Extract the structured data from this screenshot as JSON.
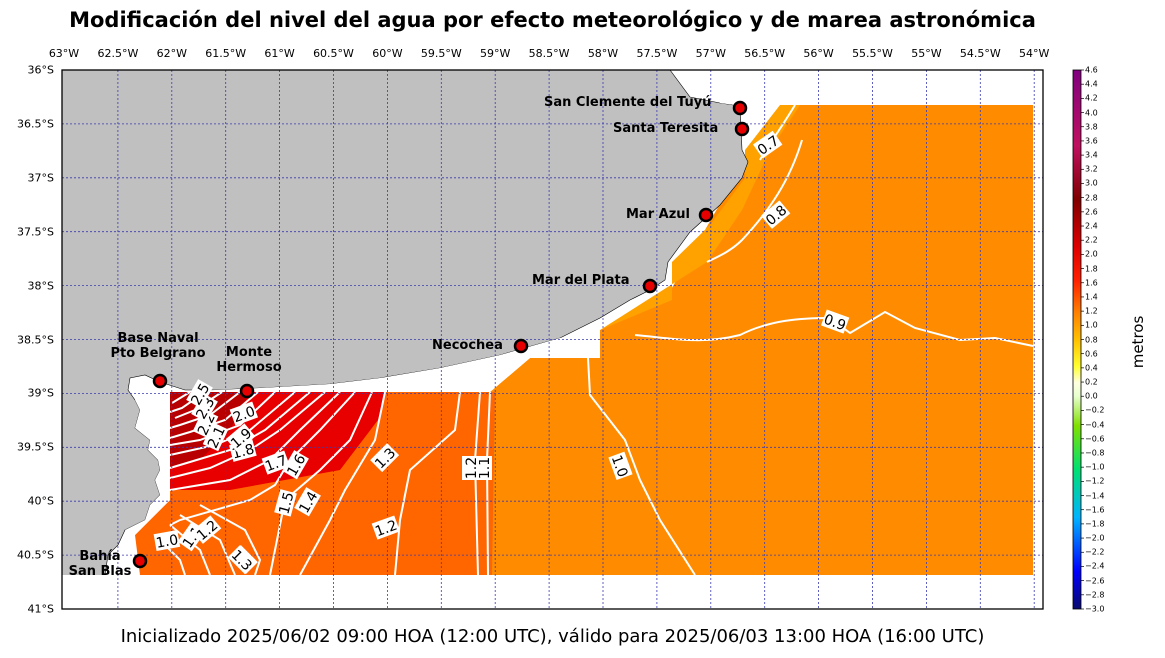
{
  "title": "Modificación del nivel del agua por efecto meteorológico y de marea astronómica",
  "footer": "Inicializado 2025/06/02 09:00 HOA (12:00 UTC), válido para 2025/06/03 13:00 HOA (16:00 UTC)",
  "map": {
    "lon_ticks": [
      "63°W",
      "62.5°W",
      "62°W",
      "61.5°W",
      "61°W",
      "60.5°W",
      "60°W",
      "59.5°W",
      "59°W",
      "58.5°W",
      "58°W",
      "57.5°W",
      "57°W",
      "56.5°W",
      "56°W",
      "55.5°W",
      "55°W",
      "54.5°W",
      "54°W"
    ],
    "lat_ticks": [
      "36°S",
      "36.5°S",
      "37°S",
      "37.5°S",
      "38°S",
      "38.5°S",
      "39°S",
      "39.5°S",
      "40°S",
      "40.5°S",
      "41°S"
    ],
    "colors": {
      "land": "#c0c0c0",
      "grid": "#3a3ab0",
      "station": "#e60000",
      "contour": "#ffffff"
    },
    "stations": [
      {
        "name": "San Clemente del Tuyú"
      },
      {
        "name": "Santa Teresita"
      },
      {
        "name": "Mar Azul"
      },
      {
        "name": "Mar del Plata"
      },
      {
        "name": "Necochea"
      },
      {
        "name": "Base Naval",
        "name2": "Pto Belgrano"
      },
      {
        "name": "Monte",
        "name2": "Hermoso"
      },
      {
        "name": "Bahía",
        "name2": "San Blas"
      }
    ],
    "contour_labels": [
      "0.7",
      "0.8",
      "0.9",
      "1.0",
      "1.1",
      "1.2",
      "1.2",
      "1.3",
      "1.3",
      "1.4",
      "1.5",
      "1.6",
      "1.7",
      "1.8",
      "1.9",
      "2.0",
      "2.1",
      "2.2",
      "2.3",
      "2.5",
      "1.0",
      "1.1",
      "1.2",
      "1.3"
    ]
  },
  "colorbar": {
    "label": "metros",
    "min": -3.0,
    "max": 4.6,
    "ticks": [
      "4.6",
      "4.4",
      "4.2",
      "4.0",
      "3.8",
      "3.6",
      "3.4",
      "3.2",
      "3.0",
      "2.8",
      "2.6",
      "2.4",
      "2.2",
      "2.0",
      "1.8",
      "1.6",
      "1.4",
      "1.2",
      "1.0",
      "0.8",
      "0.6",
      "0.4",
      "0.2",
      "0.0",
      "−0.2",
      "−0.4",
      "−0.6",
      "−0.8",
      "−1.0",
      "−1.2",
      "−1.4",
      "−1.6",
      "−1.8",
      "−2.0",
      "−2.2",
      "−2.4",
      "−2.6",
      "−2.8",
      "−3.0"
    ]
  }
}
